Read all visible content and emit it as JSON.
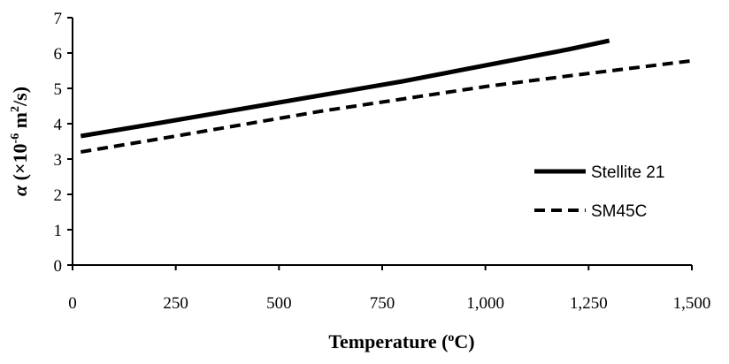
{
  "chart_data": {
    "type": "line",
    "title": "",
    "xlabel": "Temperature (",
    "xlabel_sup": "o",
    "xlabel_suffix": "C)",
    "ylabel_symbol": "α",
    "ylabel_prefix": " (×10",
    "ylabel_exp": "-6",
    "ylabel_unit": " m",
    "ylabel_unit_sup": "2",
    "ylabel_suffix": "/s)",
    "xlim": [
      0,
      1500
    ],
    "ylim": [
      0,
      7
    ],
    "x_ticks": [
      0,
      250,
      500,
      750,
      1000,
      1250,
      1500
    ],
    "x_tick_labels": [
      "0",
      "250",
      "500",
      "750",
      "1,000",
      "1,250",
      "1,500"
    ],
    "y_ticks": [
      0,
      1,
      2,
      3,
      4,
      5,
      6,
      7
    ],
    "y_tick_labels": [
      "0",
      "1",
      "2",
      "3",
      "4",
      "5",
      "6",
      "7"
    ],
    "grid": false,
    "legend_position": "right",
    "series": [
      {
        "name": "Stellite 21",
        "style": "solid",
        "color": "#000000",
        "x": [
          20,
          200,
          400,
          600,
          800,
          1000,
          1200,
          1300
        ],
        "y": [
          3.65,
          4.0,
          4.4,
          4.8,
          5.2,
          5.65,
          6.1,
          6.35
        ]
      },
      {
        "name": "SM45C",
        "style": "dashed",
        "color": "#000000",
        "x": [
          20,
          200,
          400,
          600,
          800,
          1000,
          1200,
          1500
        ],
        "y": [
          3.2,
          3.55,
          3.95,
          4.35,
          4.7,
          5.05,
          5.35,
          5.78
        ]
      }
    ]
  }
}
